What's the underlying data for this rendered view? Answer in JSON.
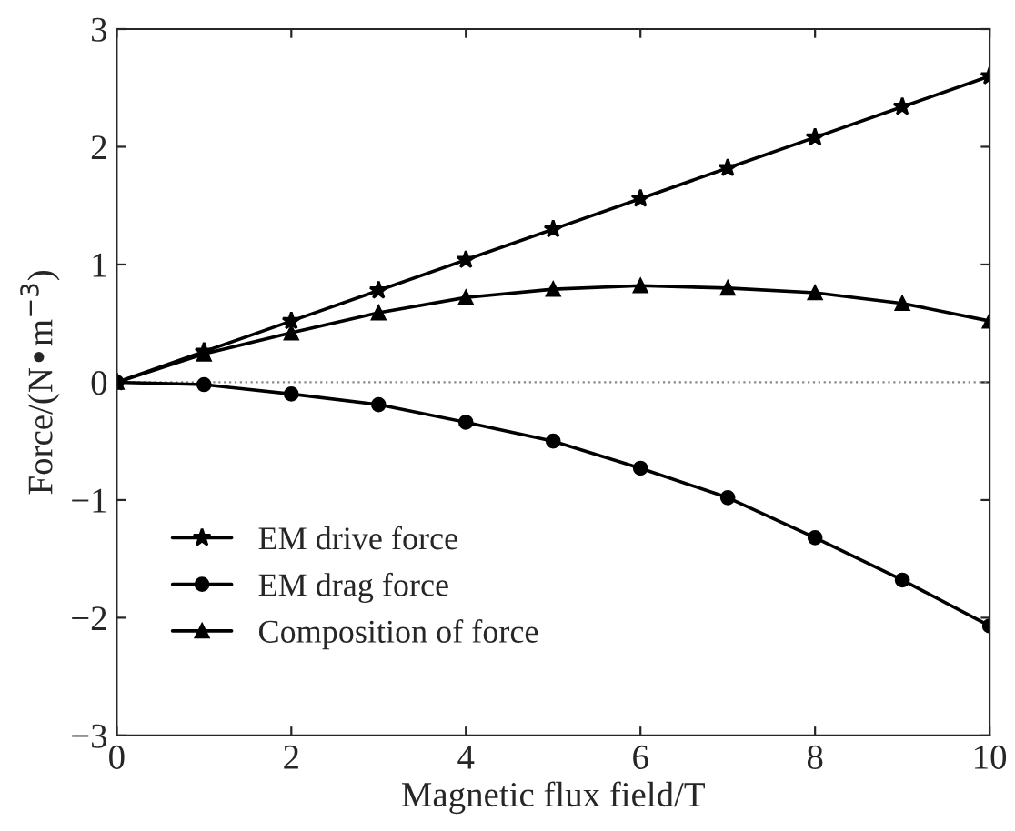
{
  "chart_data": {
    "type": "line",
    "xlabel": "Magnetic flux field/T",
    "ylabel": "Force/(N•m$^{−3}$)",
    "x": [
      0,
      1,
      2,
      3,
      4,
      5,
      6,
      7,
      8,
      9,
      10
    ],
    "series": [
      {
        "name": "EM drive force",
        "color": "#000000",
        "marker": "star",
        "values": [
          0,
          0.26,
          0.52,
          0.78,
          1.04,
          1.3,
          1.56,
          1.82,
          2.08,
          2.34,
          2.6
        ]
      },
      {
        "name": "EM drag force",
        "color": "#000000",
        "marker": "circle",
        "values": [
          0,
          -0.02,
          -0.1,
          -0.19,
          -0.34,
          -0.5,
          -0.73,
          -0.98,
          -1.32,
          -1.68,
          -2.07
        ]
      },
      {
        "name": "Composition of force",
        "color": "#000000",
        "marker": "triangle",
        "values": [
          0,
          0.24,
          0.42,
          0.59,
          0.72,
          0.79,
          0.82,
          0.8,
          0.76,
          0.67,
          0.52
        ]
      }
    ],
    "xlim": [
      0,
      10
    ],
    "xticks": [
      0,
      2,
      4,
      6,
      8,
      10
    ],
    "ylim": [
      -3,
      3
    ],
    "yticks": [
      -3,
      -2,
      -1,
      0,
      1,
      2,
      3
    ],
    "ref_lines": [
      {
        "axis": "y",
        "value": 0,
        "color": "#888888",
        "line_style": "dotted"
      }
    ],
    "grid": false,
    "legend": "bottom left",
    "line_style": "solid"
  }
}
